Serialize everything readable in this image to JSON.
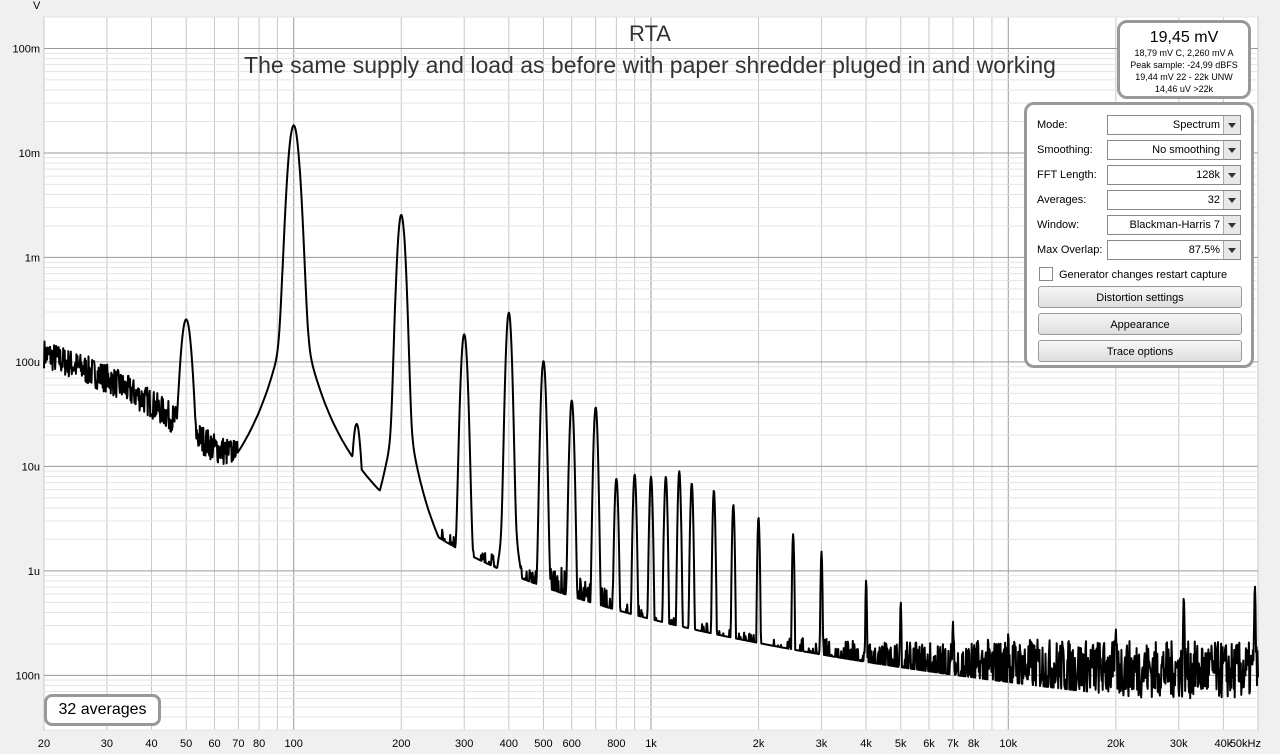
{
  "chart_data": {
    "type": "line",
    "title": "RTA",
    "subtitle": "The same supply and load as before with paper shredder pluged in and working",
    "y_unit": "V",
    "x_scale": "log",
    "y_scale": "log",
    "xlim": [
      20,
      50000
    ],
    "ylim": [
      3e-08,
      0.2
    ],
    "y_ticks": [
      {
        "v": 0.1,
        "label": "100m"
      },
      {
        "v": 0.01,
        "label": "10m"
      },
      {
        "v": 0.001,
        "label": "1m"
      },
      {
        "v": 0.0001,
        "label": "100u"
      },
      {
        "v": 1e-05,
        "label": "10u"
      },
      {
        "v": 1e-06,
        "label": "1u"
      },
      {
        "v": 1e-07,
        "label": "100n"
      }
    ],
    "x_ticks": [
      {
        "v": 20,
        "label": "20"
      },
      {
        "v": 30,
        "label": "30"
      },
      {
        "v": 40,
        "label": "40"
      },
      {
        "v": 50,
        "label": "50"
      },
      {
        "v": 60,
        "label": "60"
      },
      {
        "v": 70,
        "label": "70"
      },
      {
        "v": 80,
        "label": "80"
      },
      {
        "v": 100,
        "label": "100"
      },
      {
        "v": 200,
        "label": "200"
      },
      {
        "v": 300,
        "label": "300"
      },
      {
        "v": 400,
        "label": "400"
      },
      {
        "v": 500,
        "label": "500"
      },
      {
        "v": 600,
        "label": "600"
      },
      {
        "v": 800,
        "label": "800"
      },
      {
        "v": 1000,
        "label": "1k"
      },
      {
        "v": 2000,
        "label": "2k"
      },
      {
        "v": 3000,
        "label": "3k"
      },
      {
        "v": 4000,
        "label": "4k"
      },
      {
        "v": 5000,
        "label": "5k"
      },
      {
        "v": 6000,
        "label": "6k"
      },
      {
        "v": 7000,
        "label": "7k"
      },
      {
        "v": 8000,
        "label": "8k"
      },
      {
        "v": 10000,
        "label": "10k"
      },
      {
        "v": 20000,
        "label": "20k"
      },
      {
        "v": 30000,
        "label": "30k"
      },
      {
        "v": 40000,
        "label": "40k"
      },
      {
        "v": 50000,
        "label": "50kHz"
      }
    ],
    "grid": true,
    "series": [
      {
        "color": "#000000",
        "noise_floor": [
          [
            20,
            0.00012
          ],
          [
            30,
            7e-05
          ],
          [
            40,
            4e-05
          ],
          [
            60,
            1.5e-05
          ],
          [
            80,
            1.1e-05
          ],
          [
            100,
            1.2e-05
          ],
          [
            150,
            5e-06
          ],
          [
            200,
            3e-06
          ],
          [
            300,
            1.4e-06
          ],
          [
            400,
            9e-07
          ],
          [
            500,
            7e-07
          ],
          [
            700,
            4e-07
          ],
          [
            1000,
            2.2e-07
          ],
          [
            2000,
            1.3e-07
          ],
          [
            5000,
            1.1e-07
          ],
          [
            10000,
            1.2e-07
          ],
          [
            50000,
            1.1e-07
          ]
        ],
        "peaks": [
          {
            "f": 50,
            "v": 0.00025
          },
          {
            "f": 100,
            "v": 0.018
          },
          {
            "f": 150,
            "v": 2.5e-05
          },
          {
            "f": 200,
            "v": 0.0025
          },
          {
            "f": 300,
            "v": 0.00018
          },
          {
            "f": 400,
            "v": 0.00029
          },
          {
            "f": 500,
            "v": 0.0001
          },
          {
            "f": 600,
            "v": 4.2e-05
          },
          {
            "f": 700,
            "v": 3.6e-05
          },
          {
            "f": 800,
            "v": 7.5e-06
          },
          {
            "f": 900,
            "v": 8.2e-06
          },
          {
            "f": 1000,
            "v": 7.8e-06
          },
          {
            "f": 1100,
            "v": 7.8e-06
          },
          {
            "f": 1200,
            "v": 8.8e-06
          },
          {
            "f": 1300,
            "v": 6.8e-06
          },
          {
            "f": 1500,
            "v": 5.8e-06
          },
          {
            "f": 1700,
            "v": 4.2e-06
          },
          {
            "f": 2000,
            "v": 3.2e-06
          },
          {
            "f": 2500,
            "v": 2.2e-06
          },
          {
            "f": 3000,
            "v": 1.5e-06
          },
          {
            "f": 4000,
            "v": 8e-07
          },
          {
            "f": 5000,
            "v": 5e-07
          },
          {
            "f": 7000,
            "v": 3.2e-07
          },
          {
            "f": 10000,
            "v": 2.5e-07
          },
          {
            "f": 20000,
            "v": 2.7e-07
          },
          {
            "f": 31000,
            "v": 5.5e-07
          },
          {
            "f": 49000,
            "v": 7e-07
          }
        ]
      }
    ]
  },
  "readout": {
    "main": "19,45 mV",
    "line1": "18,79 mV C, 2,260 mV A",
    "line2": "Peak sample: -24,99 dBFS",
    "line3": "19,44 mV 22 - 22k UNW",
    "line4": "14,46 uV >22k"
  },
  "panel": {
    "mode": {
      "label": "Mode:",
      "value": "Spectrum"
    },
    "smoothing": {
      "label": "Smoothing:",
      "value": "No  smoothing"
    },
    "fft": {
      "label": "FFT Length:",
      "value": "128k"
    },
    "averages": {
      "label": "Averages:",
      "value": "32"
    },
    "window": {
      "label": "Window:",
      "value": "Blackman-Harris 7"
    },
    "overlap": {
      "label": "Max Overlap:",
      "value": "87.5%"
    },
    "generator_label": "Generator changes restart capture",
    "distortion_btn": "Distortion settings",
    "appearance_btn": "Appearance",
    "trace_btn": "Trace options"
  },
  "averages_badge": "32 averages"
}
